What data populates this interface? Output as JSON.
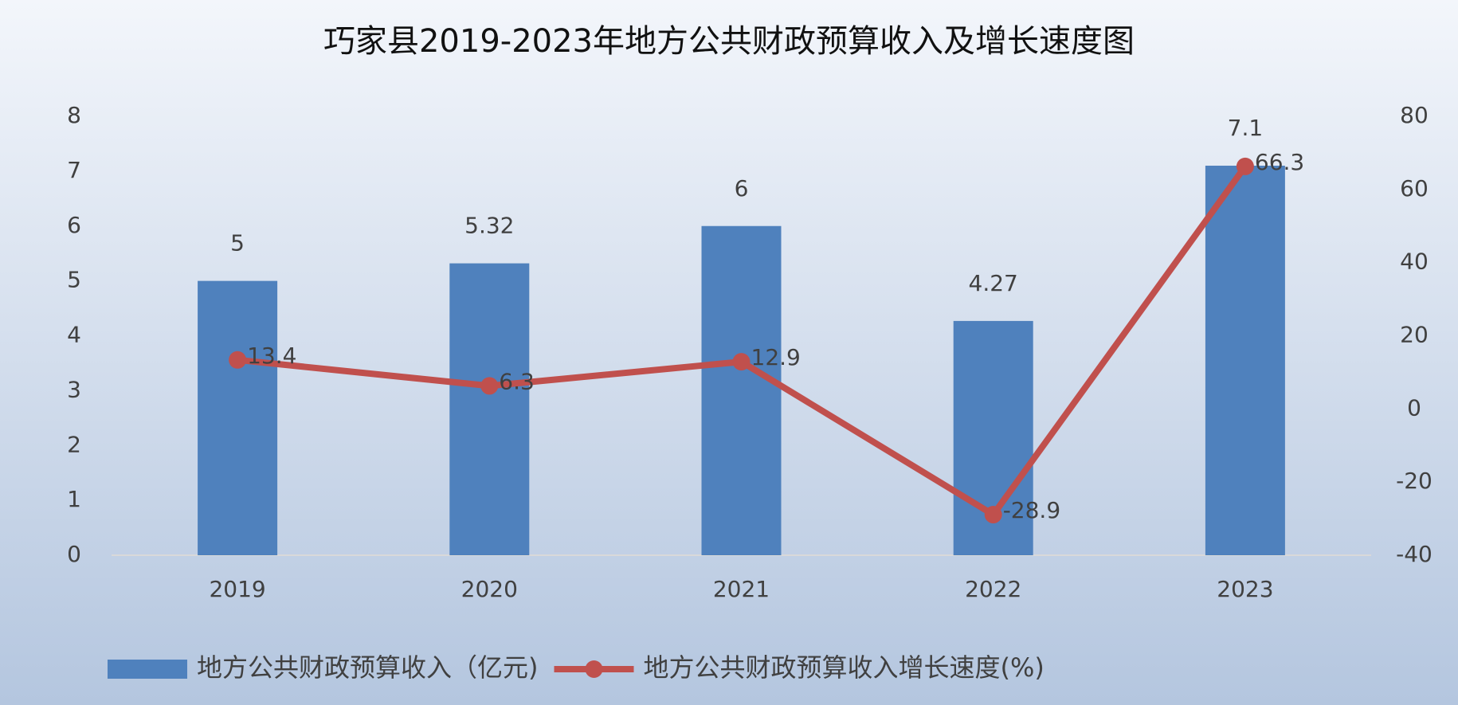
{
  "chart_data": {
    "type": "bar",
    "title": "巧家县2019-2023年地方公共财政预算收入及增长速度图",
    "categories": [
      "2019",
      "2020",
      "2021",
      "2022",
      "2023"
    ],
    "series": [
      {
        "name": "地方公共财政预算收入（亿元)",
        "type": "bar",
        "color": "#4f81bd",
        "values": [
          5,
          5.32,
          6,
          4.27,
          7.1
        ]
      },
      {
        "name": "地方公共财政预算收入增长速度(%)",
        "type": "line",
        "axis": "y2",
        "color": "#c0504d",
        "values": [
          13.4,
          6.3,
          12.9,
          -28.9,
          66.3
        ]
      }
    ],
    "ylim": [
      0,
      8
    ],
    "yticks": [
      0,
      1,
      2,
      3,
      4,
      5,
      6,
      7,
      8
    ],
    "y2lim": [
      -40,
      80
    ],
    "y2ticks": [
      -40,
      -20,
      0,
      20,
      40,
      60,
      80
    ],
    "grid": false,
    "legend": "bottom"
  }
}
